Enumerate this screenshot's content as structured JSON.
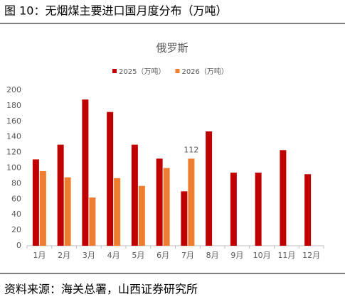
{
  "header": {
    "title": "图 10：无烟煤主要进口国月度分布（万吨）"
  },
  "footer": {
    "source": "资料来源：海关总署，山西证券研究所"
  },
  "chart_data": {
    "type": "bar",
    "title": "俄罗斯",
    "categories": [
      "1月",
      "2月",
      "3月",
      "4月",
      "5月",
      "6月",
      "7月",
      "8月",
      "9月",
      "10月",
      "11月",
      "12月"
    ],
    "series": [
      {
        "name": "2025（万吨）",
        "color": "#c00000",
        "values": [
          111,
          130,
          188,
          172,
          130,
          112,
          70,
          147,
          94,
          94,
          123,
          92
        ]
      },
      {
        "name": "2026（万吨）",
        "color": "#ed7d31",
        "values": [
          96,
          88,
          62,
          87,
          77,
          100,
          112,
          null,
          null,
          null,
          null,
          null
        ],
        "data_labels": "last"
      }
    ],
    "ylim": [
      0,
      200
    ],
    "yticks": [
      0,
      20,
      40,
      60,
      80,
      100,
      120,
      140,
      160,
      180,
      200
    ],
    "grid": false,
    "legend": "top"
  }
}
